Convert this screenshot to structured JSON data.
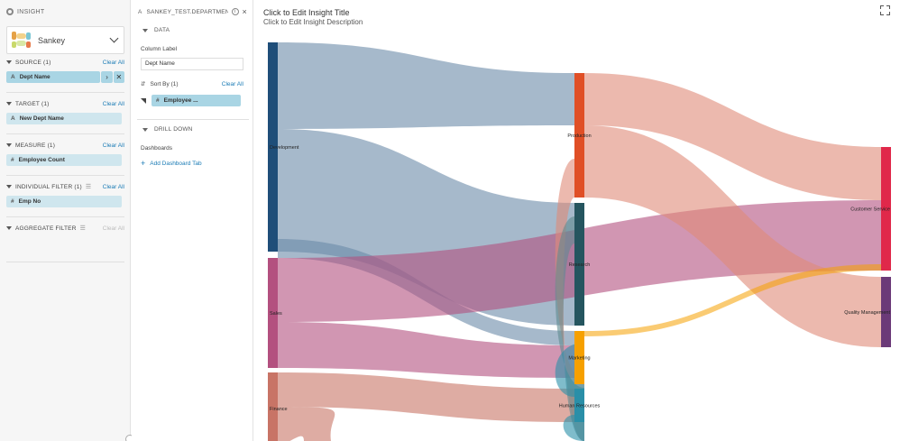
{
  "left_panel": {
    "header": "INSIGHT",
    "viz_type": "Sankey",
    "sections": {
      "source": {
        "title": "SOURCE",
        "count": "(1)",
        "clear": "Clear All",
        "pill_type": "A",
        "pill_label": "Dept Name",
        "pill_arrow": "›",
        "pill_remove": "✕"
      },
      "target": {
        "title": "TARGET",
        "count": "(1)",
        "clear": "Clear All",
        "pill_type": "A",
        "pill_label": "New Dept Name"
      },
      "measure": {
        "title": "MEASURE",
        "count": "(1)",
        "clear": "Clear All",
        "pill_type": "#",
        "pill_label": "Employee Count"
      },
      "individual_filter": {
        "title": "INDIVIDUAL FILTER",
        "count": "(1)",
        "clear": "Clear All",
        "pill_type": "#",
        "pill_label": "Emp No"
      },
      "aggregate_filter": {
        "title": "AGGREGATE FILTER",
        "clear": "Clear All"
      }
    }
  },
  "mid_panel": {
    "header": "SANKEY_TEST.DEPARTMENT...",
    "type_glyph": "A",
    "info_glyph": "i",
    "close_glyph": "×",
    "data_section": "DATA",
    "column_label_caption": "Column Label",
    "column_label_value": "Dept Name",
    "sort_by": "Sort By",
    "sort_count": "(1)",
    "sort_clear": "Clear All",
    "sort_pill_type": "#",
    "sort_pill_label": "Employee ...",
    "drill_down": "DRILL DOWN",
    "dashboards_caption": "Dashboards",
    "add_tab": "Add Dashboard Tab",
    "add_glyph": "+"
  },
  "canvas": {
    "title": "Click to Edit Insight Title",
    "description": "Click to Edit Insight Description"
  },
  "chart_data": {
    "type": "sankey",
    "nodes": [
      {
        "id": "Development",
        "label": "Development",
        "color": "#1f4e79",
        "column": 0
      },
      {
        "id": "Sales",
        "label": "Sales",
        "color": "#b3507f",
        "column": 0
      },
      {
        "id": "Finance",
        "label": "Finance",
        "color": "#c87466",
        "column": 0
      },
      {
        "id": "Production",
        "label": "Production",
        "color": "#e04f26",
        "column": 1
      },
      {
        "id": "Research",
        "label": "Research",
        "color": "#25555f",
        "column": 1
      },
      {
        "id": "Marketing",
        "label": "Marketing",
        "color": "#f6a000",
        "column": 1
      },
      {
        "id": "Human Resources",
        "label": "Human Resources",
        "color": "#2a8fa8",
        "column": 1
      },
      {
        "id": "Customer Service",
        "label": "Customer Service",
        "color": "#e0284a",
        "column": 2
      },
      {
        "id": "Quality Management",
        "label": "Quality Management",
        "color": "#6b3a78",
        "column": 2
      }
    ],
    "links": [
      {
        "source": "Development",
        "target": "Production",
        "value": 24
      },
      {
        "source": "Development",
        "target": "Research",
        "value": 42
      },
      {
        "source": "Development",
        "target": "Marketing",
        "value": 14
      },
      {
        "source": "Sales",
        "target": "Customer Service",
        "value": 29
      },
      {
        "source": "Sales",
        "target": "Marketing",
        "value": 14
      },
      {
        "source": "Finance",
        "target": "Human Resources",
        "value": 14
      },
      {
        "source": "Finance",
        "target": "Finance",
        "value": 8
      },
      {
        "source": "Production",
        "target": "Customer Service",
        "value": 15
      },
      {
        "source": "Production",
        "target": "Quality Management",
        "value": 33
      },
      {
        "source": "Marketing",
        "target": "Customer Service",
        "value": 3
      },
      {
        "source": "Production",
        "target": "Human Resources",
        "value": 12
      },
      {
        "source": "Research",
        "target": "Human Resources",
        "value": 10
      },
      {
        "source": "Human Resources",
        "target": "Marketing",
        "value": 4
      }
    ]
  }
}
